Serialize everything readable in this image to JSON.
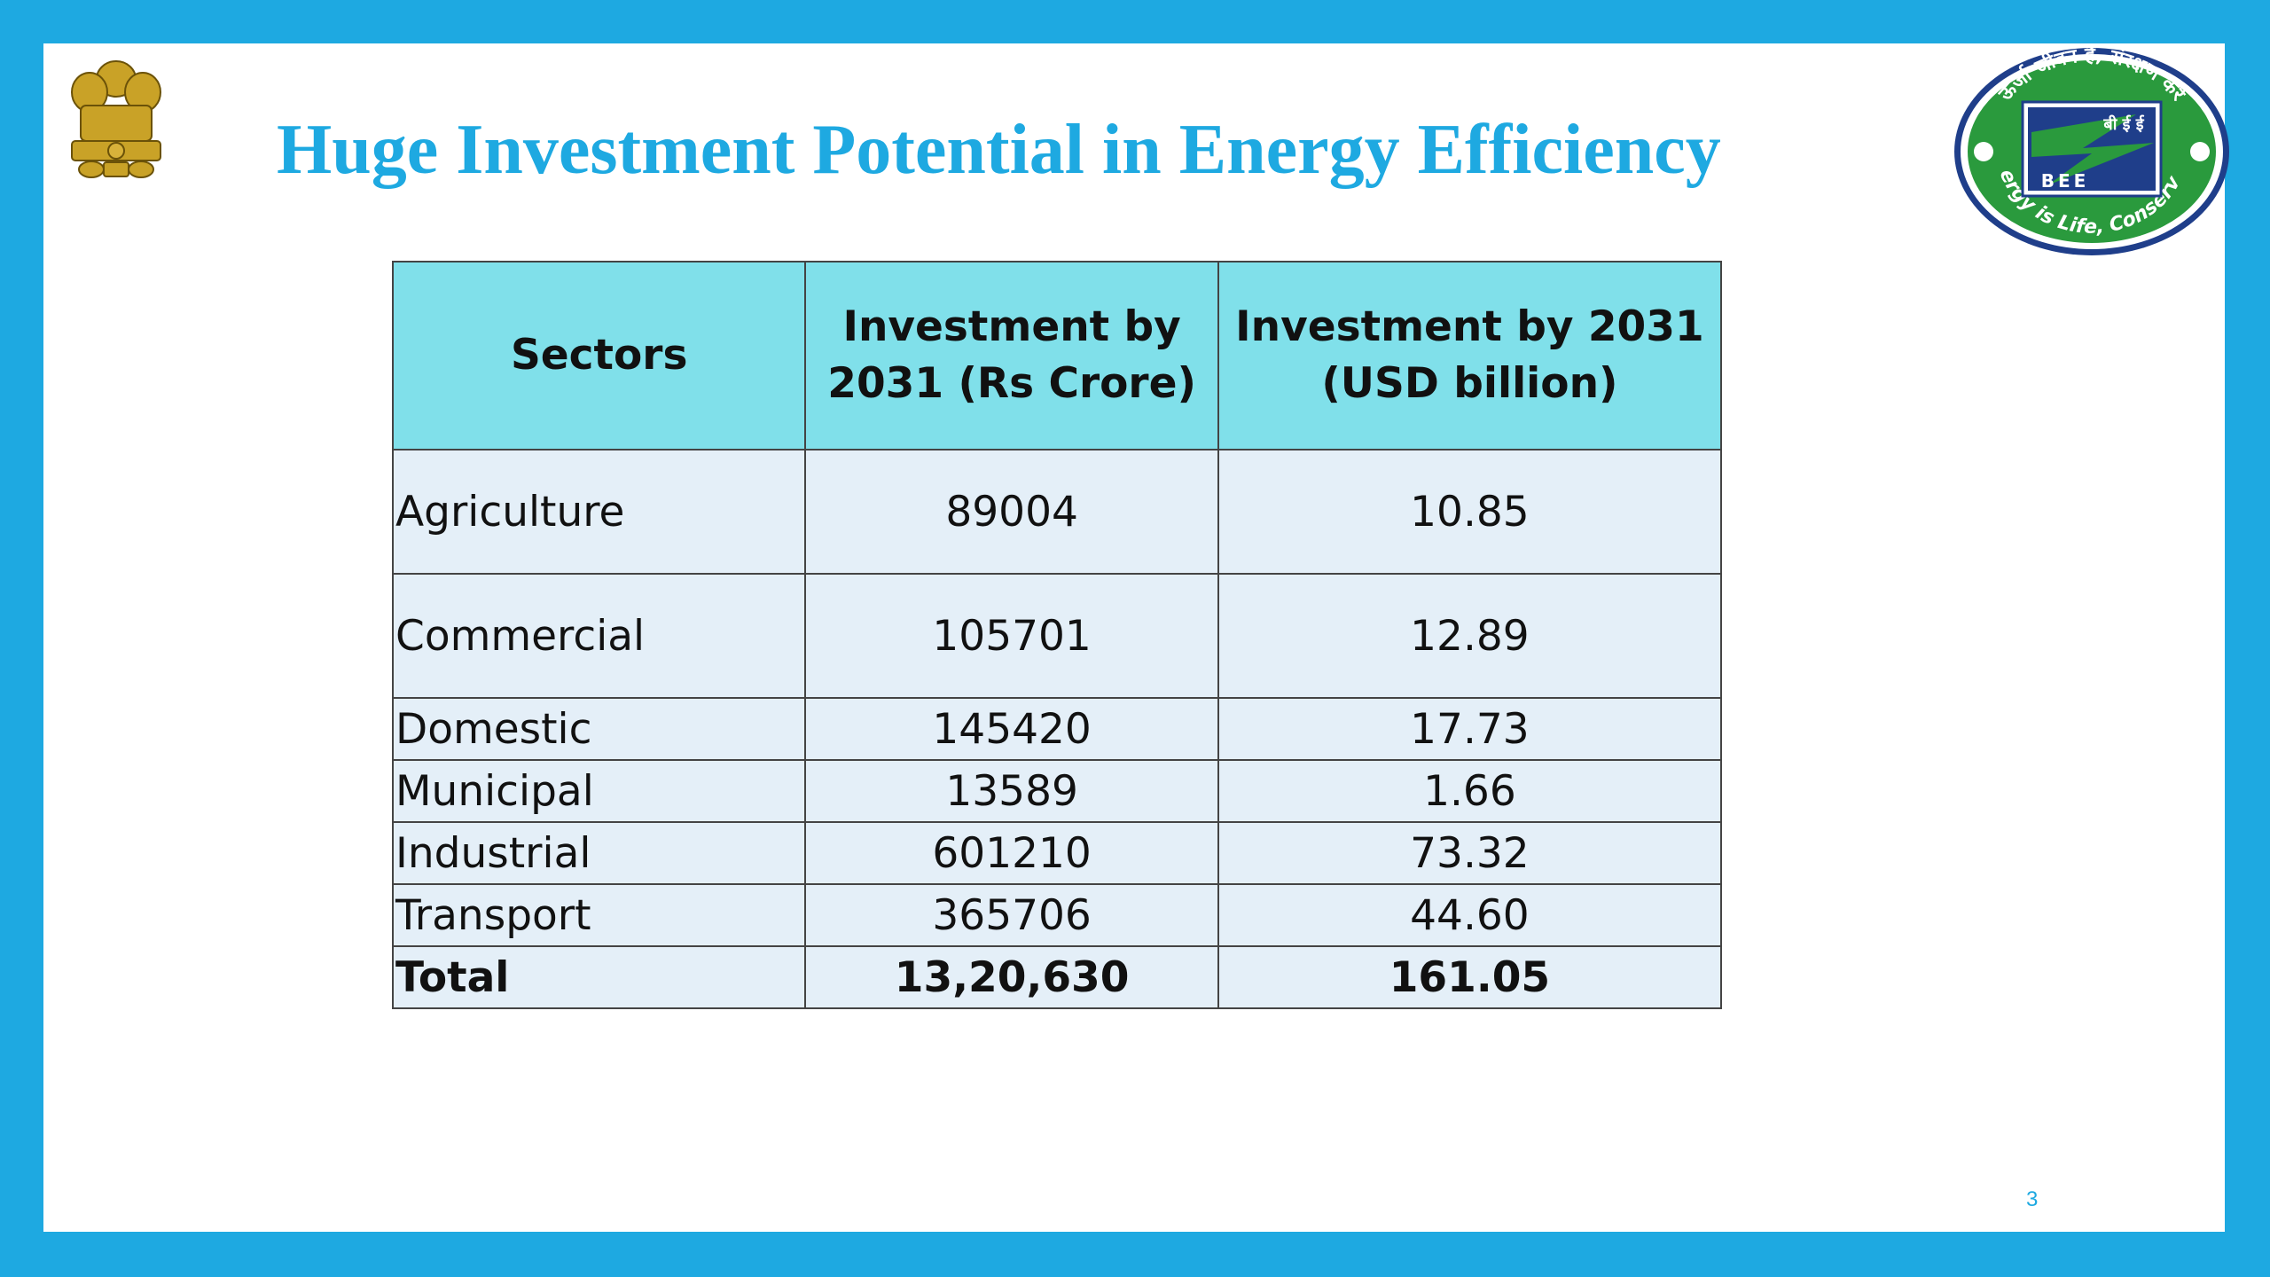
{
  "slide": {
    "title": "Huge Investment Potential in Energy Efficiency",
    "page_number": "3"
  },
  "logos": {
    "emblem": "state-emblem-icon",
    "bee_logo_top_text": "ऊर्जा जीवन है, संरक्षण करें",
    "bee_logo_center_hindi": "बी ई ई",
    "bee_logo_center": "BEE",
    "bee_logo_bottom_text": "Energy is Life, Conserve it"
  },
  "table": {
    "headers": [
      "Sectors",
      "Investment by 2031 (Rs Crore)",
      "Investment by 2031 (USD billion)"
    ],
    "rows": [
      {
        "sector": "Agriculture",
        "rs_crore": "89004",
        "usd_billion": "10.85"
      },
      {
        "sector": "Commercial",
        "rs_crore": "105701",
        "usd_billion": "12.89"
      },
      {
        "sector": "Domestic",
        "rs_crore": "145420",
        "usd_billion": "17.73"
      },
      {
        "sector": "Municipal",
        "rs_crore": "13589",
        "usd_billion": "1.66"
      },
      {
        "sector": "Industrial",
        "rs_crore": "601210",
        "usd_billion": "73.32"
      },
      {
        "sector": "Transport",
        "rs_crore": "365706",
        "usd_billion": "44.60"
      }
    ],
    "total": {
      "sector": "Total",
      "rs_crore": "13,20,630",
      "usd_billion": "161.05"
    }
  },
  "colors": {
    "frame": "#1ea9e1",
    "title": "#1ea9e1",
    "header_bg": "#80e0ea",
    "row_bg": "#e4eff8"
  }
}
